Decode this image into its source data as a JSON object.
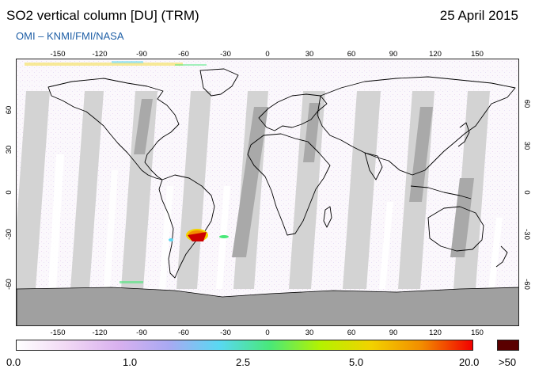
{
  "header": {
    "title": "SO2 vertical column [DU] (TRM)",
    "date": "25 April 2015",
    "source": "OMI  –  KNMI/FMI/NASA"
  },
  "map": {
    "projection": "equirectangular",
    "lon_ticks": [
      "-150",
      "-120",
      "-90",
      "-60",
      "-30",
      "0",
      "30",
      "60",
      "90",
      "120",
      "150"
    ],
    "lat_ticks": [
      "60",
      "30",
      "0",
      "-30",
      "-60"
    ],
    "colors": {
      "no_data_swath": "#d3d3d3",
      "overlap_swath": "#a9a9a9",
      "antarctica_fill": "#a0a0a0",
      "background": "#fbf8fc",
      "coastline": "#000000"
    },
    "features": [
      {
        "name": "so2-plume-south-america",
        "color": "#cc0000"
      }
    ]
  },
  "colorbar": {
    "labels": [
      "0.0",
      "1.0",
      "2.5",
      "5.0",
      "20.0"
    ],
    "overflow_label": ">50",
    "overflow_color": "#5a0000",
    "gradient": [
      "#ffffff",
      "#f1d8f4",
      "#d9b1ef",
      "#a9a9f2",
      "#59d8f2",
      "#49e879",
      "#b4f200",
      "#f2d200",
      "#f28c00",
      "#f20000"
    ]
  }
}
